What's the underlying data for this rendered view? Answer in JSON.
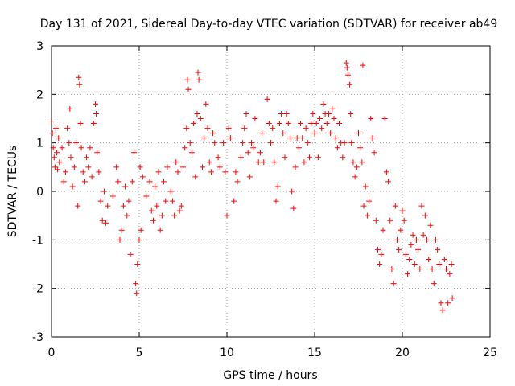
{
  "chart_data": {
    "type": "scatter",
    "title": "Day 131 of 2021, Sidereal Day-to-day VTEC variation (SDTVAR) for receiver ab49",
    "xlabel": "GPS time / hours",
    "ylabel": "SDTVAR / TECUs",
    "xlim": [
      0,
      25
    ],
    "ylim": [
      -3,
      3
    ],
    "xticks": [
      0,
      5,
      10,
      15,
      20,
      25
    ],
    "yticks": [
      -3,
      -2,
      -1,
      0,
      1,
      2,
      3
    ],
    "xtick_labels": [
      "0",
      "5",
      "10",
      "15",
      "20",
      "25"
    ],
    "ytick_labels": [
      "-3",
      "-2",
      "-1",
      "0",
      "1",
      "2",
      "3"
    ],
    "grid": true,
    "marker": "+",
    "color": "#ff0000",
    "points": [
      [
        0.0,
        1.45
      ],
      [
        0.05,
        1.2
      ],
      [
        0.1,
        0.9
      ],
      [
        0.15,
        0.7
      ],
      [
        0.2,
        0.5
      ],
      [
        0.25,
        1.3
      ],
      [
        0.3,
        0.8
      ],
      [
        0.35,
        0.45
      ],
      [
        0.4,
        1.1
      ],
      [
        0.45,
        0.6
      ],
      [
        0.6,
        0.9
      ],
      [
        0.7,
        0.2
      ],
      [
        0.8,
        0.4
      ],
      [
        0.9,
        1.3
      ],
      [
        1.0,
        1.0
      ],
      [
        1.05,
        1.7
      ],
      [
        1.1,
        0.7
      ],
      [
        1.2,
        0.1
      ],
      [
        1.3,
        0.5
      ],
      [
        1.4,
        1.0
      ],
      [
        1.5,
        -0.3
      ],
      [
        1.55,
        2.35
      ],
      [
        1.6,
        2.2
      ],
      [
        1.65,
        1.4
      ],
      [
        1.7,
        0.9
      ],
      [
        1.8,
        0.4
      ],
      [
        1.9,
        0.2
      ],
      [
        2.0,
        0.7
      ],
      [
        2.1,
        0.5
      ],
      [
        2.2,
        0.9
      ],
      [
        2.3,
        0.3
      ],
      [
        2.4,
        1.4
      ],
      [
        2.5,
        1.8
      ],
      [
        2.55,
        1.6
      ],
      [
        2.6,
        0.8
      ],
      [
        2.7,
        0.4
      ],
      [
        2.8,
        -0.2
      ],
      [
        2.9,
        -0.6
      ],
      [
        3.0,
        0.0
      ],
      [
        3.1,
        -0.65
      ],
      [
        3.2,
        -0.3
      ],
      [
        3.5,
        -0.1
      ],
      [
        3.7,
        0.5
      ],
      [
        3.8,
        0.2
      ],
      [
        3.9,
        -1.0
      ],
      [
        4.0,
        -0.8
      ],
      [
        4.1,
        -0.3
      ],
      [
        4.2,
        0.1
      ],
      [
        4.3,
        -0.5
      ],
      [
        4.4,
        -0.2
      ],
      [
        4.5,
        -1.3
      ],
      [
        4.6,
        0.2
      ],
      [
        4.7,
        0.8
      ],
      [
        4.8,
        -1.9
      ],
      [
        4.85,
        -2.1
      ],
      [
        4.9,
        -1.5
      ],
      [
        5.0,
        -1.0
      ],
      [
        5.05,
        0.5
      ],
      [
        5.1,
        -0.8
      ],
      [
        5.2,
        0.3
      ],
      [
        5.4,
        -0.1
      ],
      [
        5.6,
        0.2
      ],
      [
        5.7,
        -0.4
      ],
      [
        5.8,
        -0.6
      ],
      [
        5.9,
        0.1
      ],
      [
        6.0,
        -0.3
      ],
      [
        6.1,
        0.4
      ],
      [
        6.2,
        -0.8
      ],
      [
        6.3,
        -0.5
      ],
      [
        6.4,
        0.2
      ],
      [
        6.5,
        -0.2
      ],
      [
        6.6,
        0.5
      ],
      [
        6.8,
        0.0
      ],
      [
        6.9,
        -0.2
      ],
      [
        7.0,
        -0.5
      ],
      [
        7.1,
        0.6
      ],
      [
        7.2,
        0.4
      ],
      [
        7.3,
        -0.4
      ],
      [
        7.4,
        -0.3
      ],
      [
        7.5,
        0.5
      ],
      [
        7.6,
        0.9
      ],
      [
        7.7,
        1.3
      ],
      [
        7.75,
        2.3
      ],
      [
        7.8,
        2.1
      ],
      [
        7.9,
        1.0
      ],
      [
        8.0,
        0.8
      ],
      [
        8.1,
        1.4
      ],
      [
        8.2,
        0.3
      ],
      [
        8.3,
        1.6
      ],
      [
        8.35,
        2.45
      ],
      [
        8.4,
        2.3
      ],
      [
        8.5,
        1.5
      ],
      [
        8.6,
        0.5
      ],
      [
        8.7,
        1.1
      ],
      [
        8.8,
        1.8
      ],
      [
        8.9,
        1.3
      ],
      [
        9.0,
        0.6
      ],
      [
        9.1,
        0.4
      ],
      [
        9.2,
        1.2
      ],
      [
        9.3,
        1.0
      ],
      [
        9.5,
        0.7
      ],
      [
        9.6,
        0.5
      ],
      [
        9.8,
        1.0
      ],
      [
        9.9,
        0.4
      ],
      [
        10.0,
        -0.5
      ],
      [
        10.1,
        1.3
      ],
      [
        10.2,
        1.1
      ],
      [
        10.4,
        -0.2
      ],
      [
        10.5,
        0.4
      ],
      [
        10.6,
        0.2
      ],
      [
        10.8,
        0.7
      ],
      [
        10.9,
        1.0
      ],
      [
        11.0,
        1.3
      ],
      [
        11.1,
        1.6
      ],
      [
        11.2,
        0.8
      ],
      [
        11.3,
        0.3
      ],
      [
        11.4,
        1.0
      ],
      [
        11.5,
        0.9
      ],
      [
        11.6,
        1.5
      ],
      [
        11.8,
        0.6
      ],
      [
        11.9,
        0.8
      ],
      [
        12.0,
        1.2
      ],
      [
        12.1,
        0.6
      ],
      [
        12.3,
        1.9
      ],
      [
        12.4,
        1.4
      ],
      [
        12.5,
        1.0
      ],
      [
        12.6,
        1.3
      ],
      [
        12.7,
        0.6
      ],
      [
        12.8,
        -0.2
      ],
      [
        12.9,
        0.1
      ],
      [
        13.0,
        1.4
      ],
      [
        13.1,
        1.6
      ],
      [
        13.2,
        1.2
      ],
      [
        13.3,
        0.7
      ],
      [
        13.4,
        1.6
      ],
      [
        13.5,
        1.4
      ],
      [
        13.6,
        1.1
      ],
      [
        13.7,
        0.0
      ],
      [
        13.8,
        -0.35
      ],
      [
        13.9,
        0.5
      ],
      [
        14.0,
        1.1
      ],
      [
        14.1,
        0.9
      ],
      [
        14.2,
        1.4
      ],
      [
        14.3,
        1.1
      ],
      [
        14.4,
        0.6
      ],
      [
        14.5,
        1.3
      ],
      [
        14.6,
        1.0
      ],
      [
        14.7,
        0.7
      ],
      [
        14.8,
        1.4
      ],
      [
        14.9,
        1.6
      ],
      [
        15.0,
        1.2
      ],
      [
        15.1,
        1.4
      ],
      [
        15.2,
        0.7
      ],
      [
        15.3,
        1.5
      ],
      [
        15.4,
        1.3
      ],
      [
        15.5,
        1.8
      ],
      [
        15.6,
        1.6
      ],
      [
        15.7,
        1.4
      ],
      [
        15.8,
        1.6
      ],
      [
        15.9,
        1.2
      ],
      [
        16.0,
        1.7
      ],
      [
        16.1,
        1.5
      ],
      [
        16.2,
        1.1
      ],
      [
        16.3,
        0.9
      ],
      [
        16.4,
        1.4
      ],
      [
        16.5,
        1.0
      ],
      [
        16.6,
        0.7
      ],
      [
        16.7,
        1.0
      ],
      [
        16.8,
        2.65
      ],
      [
        16.85,
        2.55
      ],
      [
        16.9,
        2.4
      ],
      [
        17.0,
        2.2
      ],
      [
        17.05,
        1.6
      ],
      [
        17.1,
        1.0
      ],
      [
        17.2,
        0.6
      ],
      [
        17.3,
        0.3
      ],
      [
        17.4,
        0.5
      ],
      [
        17.5,
        1.2
      ],
      [
        17.6,
        0.9
      ],
      [
        17.7,
        0.6
      ],
      [
        17.75,
        2.6
      ],
      [
        17.8,
        -0.3
      ],
      [
        17.9,
        0.1
      ],
      [
        18.0,
        -0.5
      ],
      [
        18.1,
        -0.2
      ],
      [
        18.2,
        1.5
      ],
      [
        18.3,
        1.1
      ],
      [
        18.4,
        0.8
      ],
      [
        18.5,
        -0.6
      ],
      [
        18.6,
        -1.2
      ],
      [
        18.7,
        -1.5
      ],
      [
        18.8,
        -1.3
      ],
      [
        18.9,
        -0.8
      ],
      [
        19.0,
        1.5
      ],
      [
        19.1,
        0.4
      ],
      [
        19.2,
        0.2
      ],
      [
        19.3,
        -0.6
      ],
      [
        19.4,
        -1.6
      ],
      [
        19.5,
        -1.9
      ],
      [
        19.6,
        -0.3
      ],
      [
        19.7,
        -1.0
      ],
      [
        19.8,
        -1.2
      ],
      [
        19.9,
        -0.8
      ],
      [
        20.0,
        -0.4
      ],
      [
        20.1,
        -0.6
      ],
      [
        20.2,
        -1.3
      ],
      [
        20.3,
        -1.7
      ],
      [
        20.4,
        -1.4
      ],
      [
        20.5,
        -1.1
      ],
      [
        20.6,
        -0.9
      ],
      [
        20.7,
        -1.5
      ],
      [
        20.8,
        -1.0
      ],
      [
        20.9,
        -1.2
      ],
      [
        21.0,
        -1.6
      ],
      [
        21.1,
        -0.3
      ],
      [
        21.2,
        -0.9
      ],
      [
        21.3,
        -0.5
      ],
      [
        21.4,
        -1.0
      ],
      [
        21.5,
        -1.4
      ],
      [
        21.6,
        -0.7
      ],
      [
        21.7,
        -1.6
      ],
      [
        21.8,
        -1.9
      ],
      [
        21.9,
        -1.0
      ],
      [
        22.0,
        -1.2
      ],
      [
        22.1,
        -1.5
      ],
      [
        22.2,
        -2.3
      ],
      [
        22.3,
        -2.45
      ],
      [
        22.4,
        -1.4
      ],
      [
        22.5,
        -1.6
      ],
      [
        22.6,
        -2.3
      ],
      [
        22.7,
        -1.7
      ],
      [
        22.8,
        -1.5
      ],
      [
        22.85,
        -2.2
      ]
    ]
  }
}
